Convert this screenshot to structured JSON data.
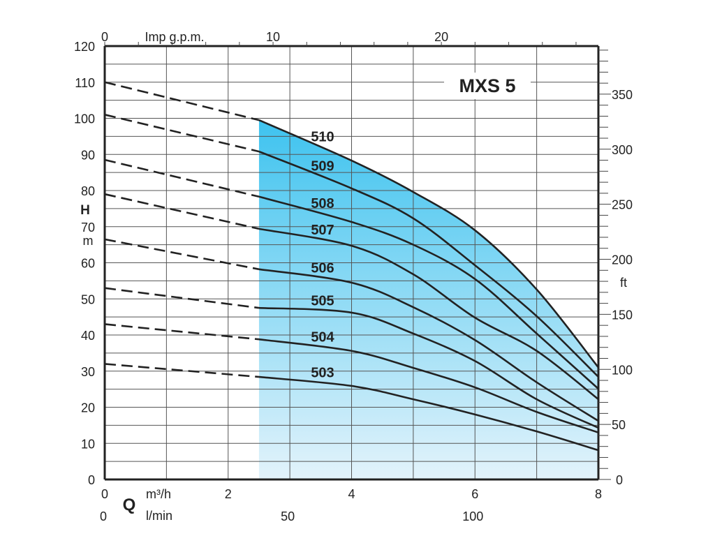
{
  "chart_data": {
    "type": "line",
    "title": "MXS 5",
    "xlabel": "Q",
    "x_units": [
      "m³/h",
      "l/min"
    ],
    "top_axis_label": "Imp g.p.m.",
    "ylabel": "H",
    "y_units": "m",
    "right_axis_units": "ft",
    "xlim": [
      0,
      8
    ],
    "ylim": [
      0,
      120
    ],
    "x_ticks": [
      0,
      2,
      4,
      6,
      8
    ],
    "y_ticks": [
      0,
      10,
      20,
      30,
      40,
      50,
      60,
      70,
      80,
      90,
      100,
      110,
      120
    ],
    "lmin_ticks": [
      0,
      50,
      100
    ],
    "gpm_ticks": [
      0,
      10,
      20
    ],
    "ft_ticks": [
      0,
      50,
      100,
      150,
      200,
      250,
      300,
      350
    ],
    "grid": true,
    "operating_range_start": 2.5,
    "fill_colors": [
      "#3ec3ef",
      "#e3f3fb"
    ],
    "x": [
      2.5,
      4,
      5,
      6,
      7,
      8
    ],
    "series": [
      {
        "name": "510",
        "shutoff": 110,
        "values": [
          99.5,
          88.3,
          79.6,
          69,
          52.6,
          31
        ]
      },
      {
        "name": "509",
        "shutoff": 101,
        "values": [
          90.8,
          80.6,
          72.3,
          59.3,
          45.2,
          28.4
        ]
      },
      {
        "name": "508",
        "shutoff": 88.5,
        "values": [
          78.3,
          71.3,
          65,
          55.5,
          40.4,
          25.1
        ]
      },
      {
        "name": "507",
        "shutoff": 79,
        "values": [
          69.4,
          64.7,
          56.8,
          44.8,
          35.6,
          22.2
        ]
      },
      {
        "name": "506",
        "shutoff": 66.5,
        "values": [
          58.2,
          54.5,
          47.7,
          38.6,
          26.9,
          16.2
        ]
      },
      {
        "name": "505",
        "shutoff": 53,
        "values": [
          47.5,
          46.2,
          40.4,
          32.8,
          22.2,
          14.3
        ]
      },
      {
        "name": "504",
        "shutoff": 43,
        "values": [
          38.8,
          35.6,
          30.9,
          25.5,
          18.7,
          13
        ]
      },
      {
        "name": "503",
        "shutoff": 32,
        "values": [
          28.4,
          25.9,
          22.2,
          18,
          13.3,
          8.1
        ]
      }
    ]
  }
}
